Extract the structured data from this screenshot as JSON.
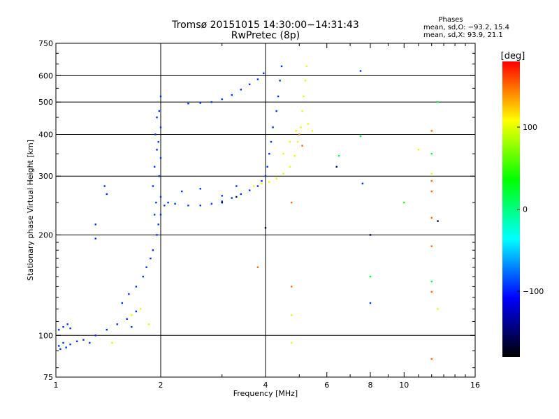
{
  "chart_data": {
    "type": "scatter",
    "title": "Tromsø 20151015 14:30:00−14:31:43",
    "subtitle": "RwPretec (8p)",
    "stats": {
      "heading": "Phases",
      "line_o": "mean, sd,O: −93.2, 15.4",
      "line_x": "mean, sd,X:  93.9, 21.1"
    },
    "xlabel": "Frequency [MHz]",
    "ylabel": "Stationary phase Virtual Height [km]",
    "x_scale": "log",
    "y_scale": "log",
    "xlim": [
      1,
      16
    ],
    "ylim": [
      75,
      750
    ],
    "x_ticks": [
      1,
      2,
      4,
      6,
      8,
      10,
      16
    ],
    "x_tick_labels": [
      "1",
      "2",
      "4",
      "6",
      "8",
      "10",
      "16"
    ],
    "y_ticks": [
      75,
      100,
      200,
      300,
      400,
      500,
      600,
      750
    ],
    "y_tick_labels": [
      "75",
      "100",
      "200",
      "300",
      "400",
      "500",
      "600",
      "750"
    ],
    "x_gridlines": [
      2,
      4
    ],
    "y_gridlines": [
      100,
      200,
      300,
      400,
      500,
      600
    ],
    "colorbar": {
      "label": "[deg]",
      "range": [
        -180,
        180
      ],
      "ticks": [
        100,
        0,
        -100
      ],
      "tick_labels": [
        "100",
        "0",
        "−100"
      ],
      "colors": [
        "#ff0000",
        "#ffff00",
        "#00ff00",
        "#00ffff",
        "#0000ff",
        "#000000"
      ]
    },
    "series": [
      {
        "phase_deg": -95,
        "points": [
          [
            1.02,
            93
          ],
          [
            1.03,
            91
          ],
          [
            1.05,
            95
          ],
          [
            1.07,
            92
          ],
          [
            1.1,
            94
          ],
          [
            1.15,
            96
          ],
          [
            1.2,
            97
          ],
          [
            1.25,
            95
          ],
          [
            1.02,
            104
          ],
          [
            1.05,
            106
          ],
          [
            1.08,
            108
          ],
          [
            1.1,
            105
          ],
          [
            1.3,
            100
          ],
          [
            1.4,
            104
          ],
          [
            1.5,
            108
          ],
          [
            1.6,
            112
          ],
          [
            1.65,
            106
          ],
          [
            1.7,
            118
          ],
          [
            1.55,
            125
          ],
          [
            1.62,
            133
          ],
          [
            1.7,
            140
          ],
          [
            1.78,
            150
          ],
          [
            1.82,
            160
          ],
          [
            1.87,
            170
          ],
          [
            1.9,
            180
          ],
          [
            1.95,
            200
          ],
          [
            1.97,
            215
          ],
          [
            2.0,
            230
          ],
          [
            2.0,
            260
          ],
          [
            1.98,
            300
          ],
          [
            2.0,
            340
          ],
          [
            1.97,
            380
          ],
          [
            2.0,
            420
          ],
          [
            1.98,
            470
          ],
          [
            2.0,
            520
          ],
          [
            1.92,
            230
          ],
          [
            1.94,
            250
          ],
          [
            1.9,
            280
          ],
          [
            1.92,
            320
          ],
          [
            1.95,
            360
          ],
          [
            1.93,
            400
          ],
          [
            1.95,
            450
          ],
          [
            2.05,
            245
          ],
          [
            2.1,
            250
          ],
          [
            2.2,
            248
          ],
          [
            2.4,
            245
          ],
          [
            2.6,
            245
          ],
          [
            2.8,
            248
          ],
          [
            3.0,
            252
          ],
          [
            3.2,
            258
          ],
          [
            3.4,
            265
          ],
          [
            3.6,
            272
          ],
          [
            3.8,
            280
          ],
          [
            3.9,
            290
          ],
          [
            4.0,
            300
          ],
          [
            4.05,
            320
          ],
          [
            4.1,
            350
          ],
          [
            4.15,
            380
          ],
          [
            4.2,
            420
          ],
          [
            4.3,
            470
          ],
          [
            4.35,
            520
          ],
          [
            4.4,
            580
          ],
          [
            4.45,
            640
          ],
          [
            2.3,
            270
          ],
          [
            2.6,
            275
          ],
          [
            3.0,
            262
          ],
          [
            3.3,
            280
          ],
          [
            2.4,
            495
          ],
          [
            2.6,
            497
          ],
          [
            2.8,
            500
          ],
          [
            3.0,
            510
          ],
          [
            3.2,
            525
          ],
          [
            3.4,
            545
          ],
          [
            3.6,
            565
          ],
          [
            3.8,
            585
          ],
          [
            3.95,
            610
          ],
          [
            1.4,
            265
          ],
          [
            1.38,
            280
          ],
          [
            1.3,
            215
          ],
          [
            1.3,
            195
          ],
          [
            7.5,
            620
          ],
          [
            8.0,
            125
          ],
          [
            7.6,
            285
          ]
        ]
      },
      {
        "phase_deg": 100,
        "points": [
          [
            3.7,
            280
          ],
          [
            3.9,
            285
          ],
          [
            4.1,
            288
          ],
          [
            4.3,
            295
          ],
          [
            4.5,
            305
          ],
          [
            4.7,
            320
          ],
          [
            4.85,
            345
          ],
          [
            4.95,
            380
          ],
          [
            5.05,
            420
          ],
          [
            5.1,
            470
          ],
          [
            5.15,
            520
          ],
          [
            5.2,
            580
          ],
          [
            5.25,
            640
          ],
          [
            4.5,
            350
          ],
          [
            4.7,
            380
          ],
          [
            4.9,
            410
          ],
          [
            5.3,
            430
          ],
          [
            5.45,
            410
          ],
          [
            1.65,
            115
          ],
          [
            1.75,
            120
          ],
          [
            1.85,
            108
          ],
          [
            1.45,
            95
          ],
          [
            4.75,
            95
          ],
          [
            4.75,
            115
          ],
          [
            12.0,
            305
          ],
          [
            11.0,
            360
          ],
          [
            12.5,
            120
          ]
        ]
      },
      {
        "phase_deg": 150,
        "points": [
          [
            4.75,
            250
          ],
          [
            4.75,
            140
          ],
          [
            5.0,
            400
          ],
          [
            5.1,
            370
          ],
          [
            12.0,
            410
          ],
          [
            12.0,
            290
          ],
          [
            12.0,
            270
          ],
          [
            12.0,
            225
          ],
          [
            12.0,
            185
          ],
          [
            12.0,
            135
          ],
          [
            12.0,
            85
          ],
          [
            3.8,
            160
          ]
        ]
      },
      {
        "phase_deg": 20,
        "points": [
          [
            6.5,
            345
          ],
          [
            7.5,
            395
          ],
          [
            8.0,
            150
          ],
          [
            10.0,
            250
          ],
          [
            12.5,
            500
          ],
          [
            12.0,
            350
          ],
          [
            12.0,
            145
          ]
        ]
      },
      {
        "phase_deg": -160,
        "points": [
          [
            3.0,
            250
          ],
          [
            3.3,
            260
          ],
          [
            6.4,
            320
          ],
          [
            8.0,
            200
          ],
          [
            4.0,
            210
          ],
          [
            12.5,
            220
          ]
        ]
      }
    ]
  }
}
